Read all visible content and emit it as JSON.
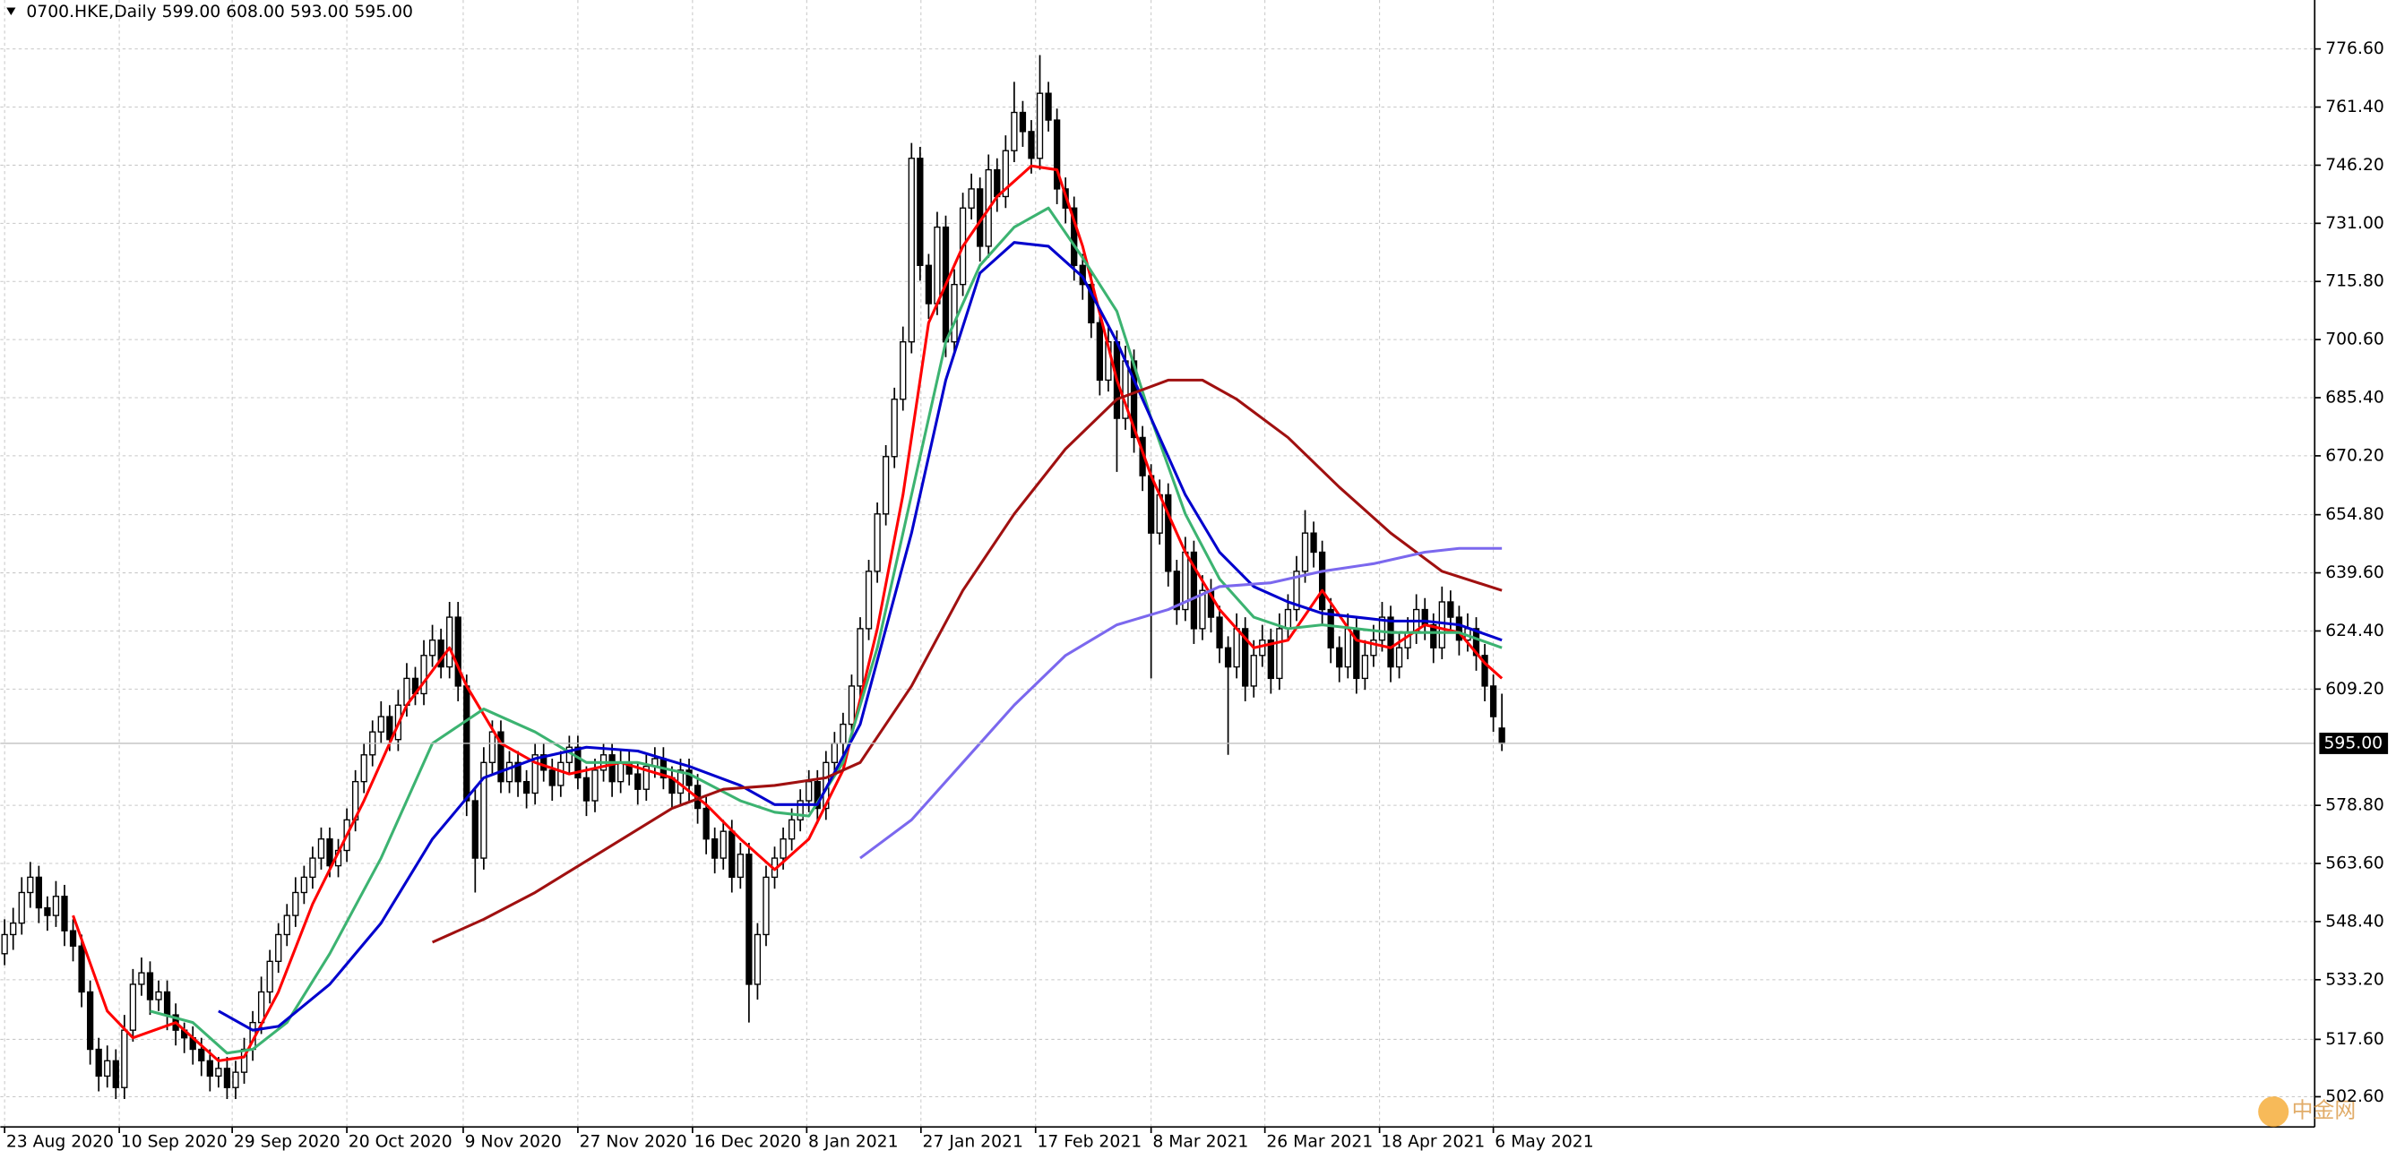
{
  "chart_data": {
    "type": "candlestick",
    "title": "0700.HKE,Daily  599.00 608.00 593.00 595.00",
    "watermark": "中金网",
    "xlim": [
      -0.5,
      270
    ],
    "ylim": [
      494.7,
      789.4
    ],
    "grid": true,
    "up_color": "#ffffff",
    "down_color": "#000000",
    "wick_color": "#000000",
    "last_price": {
      "value": 595,
      "label": "595.00"
    },
    "xticks": [
      {
        "value": 0,
        "label": "23 Aug 2020"
      },
      {
        "value": 13.4,
        "label": "10 Sep 2020"
      },
      {
        "value": 26.6,
        "label": "29 Sep 2020"
      },
      {
        "value": 40,
        "label": "20 Oct 2020"
      },
      {
        "value": 53.6,
        "label": "9 Nov 2020"
      },
      {
        "value": 67,
        "label": "27 Nov 2020"
      },
      {
        "value": 80.4,
        "label": "16 Dec 2020"
      },
      {
        "value": 93.75,
        "label": "8 Jan 2021"
      },
      {
        "value": 107.1,
        "label": "27 Jan 2021"
      },
      {
        "value": 120.5,
        "label": "17 Feb 2021"
      },
      {
        "value": 134,
        "label": "8 Mar 2021"
      },
      {
        "value": 147.3,
        "label": "26 Mar 2021"
      },
      {
        "value": 160.7,
        "label": "18 Apr 2021"
      },
      {
        "value": 174,
        "label": "6 May 2021"
      }
    ],
    "yticks": [
      {
        "value": 776.6,
        "label": "776.60"
      },
      {
        "value": 761.4,
        "label": "761.40"
      },
      {
        "value": 746.2,
        "label": "746.20"
      },
      {
        "value": 731,
        "label": "731.00"
      },
      {
        "value": 715.8,
        "label": "715.80"
      },
      {
        "value": 700.6,
        "label": "700.60"
      },
      {
        "value": 685.4,
        "label": "685.40"
      },
      {
        "value": 670.2,
        "label": "670.20"
      },
      {
        "value": 654.8,
        "label": "654.80"
      },
      {
        "value": 639.6,
        "label": "639.60"
      },
      {
        "value": 624.4,
        "label": "624.40"
      },
      {
        "value": 609.2,
        "label": "609.20"
      },
      {
        "value": 578.8,
        "label": "578.80"
      },
      {
        "value": 563.6,
        "label": "563.60"
      },
      {
        "value": 548.4,
        "label": "548.40"
      },
      {
        "value": 533.2,
        "label": "533.20"
      },
      {
        "value": 517.6,
        "label": "517.60"
      },
      {
        "value": 502.6,
        "label": "502.60"
      }
    ],
    "ohlc": [
      [
        540,
        549,
        537,
        545
      ],
      [
        545,
        552,
        541,
        548
      ],
      [
        548,
        560,
        545,
        556
      ],
      [
        556,
        564,
        552,
        560
      ],
      [
        560,
        563,
        548,
        552
      ],
      [
        552,
        555,
        546,
        550
      ],
      [
        550,
        559,
        547,
        555
      ],
      [
        555,
        558,
        542,
        546
      ],
      [
        546,
        549,
        538,
        542
      ],
      [
        542,
        545,
        526,
        530
      ],
      [
        530,
        533,
        511,
        515
      ],
      [
        515,
        518,
        504,
        508
      ],
      [
        508,
        516,
        505,
        512
      ],
      [
        512,
        515,
        502,
        505
      ],
      [
        505,
        524,
        502,
        520
      ],
      [
        520,
        536,
        517,
        532
      ],
      [
        532,
        539,
        529,
        535
      ],
      [
        535,
        538,
        524,
        528
      ],
      [
        528,
        533,
        525,
        530
      ],
      [
        530,
        533,
        520,
        524
      ],
      [
        524,
        527,
        516,
        520
      ],
      [
        520,
        522,
        514,
        518
      ],
      [
        518,
        521,
        511,
        515
      ],
      [
        515,
        518,
        508,
        512
      ],
      [
        512,
        515,
        504,
        508
      ],
      [
        508,
        513,
        505,
        510
      ],
      [
        510,
        513,
        502,
        505
      ],
      [
        505,
        512,
        502,
        509
      ],
      [
        509,
        518,
        506,
        515
      ],
      [
        515,
        525,
        512,
        522
      ],
      [
        522,
        534,
        519,
        530
      ],
      [
        530,
        541,
        527,
        538
      ],
      [
        538,
        548,
        535,
        545
      ],
      [
        545,
        553,
        542,
        550
      ],
      [
        550,
        560,
        547,
        556
      ],
      [
        556,
        563,
        553,
        560
      ],
      [
        560,
        568,
        557,
        565
      ],
      [
        565,
        573,
        562,
        570
      ],
      [
        570,
        573,
        560,
        563
      ],
      [
        563,
        570,
        560,
        567
      ],
      [
        567,
        578,
        564,
        575
      ],
      [
        575,
        588,
        572,
        585
      ],
      [
        585,
        595,
        582,
        592
      ],
      [
        592,
        601,
        589,
        598
      ],
      [
        598,
        606,
        595,
        602
      ],
      [
        602,
        605,
        593,
        596
      ],
      [
        596,
        609,
        593,
        605
      ],
      [
        605,
        616,
        602,
        612
      ],
      [
        612,
        615,
        605,
        608
      ],
      [
        608,
        622,
        605,
        618
      ],
      [
        618,
        626,
        615,
        622
      ],
      [
        622,
        625,
        612,
        615
      ],
      [
        615,
        632,
        612,
        628
      ],
      [
        628,
        632,
        606,
        610
      ],
      [
        610,
        613,
        576,
        580
      ],
      [
        580,
        583,
        556,
        565
      ],
      [
        565,
        594,
        562,
        590
      ],
      [
        590,
        601,
        587,
        598
      ],
      [
        598,
        601,
        582,
        585
      ],
      [
        585,
        593,
        582,
        590
      ],
      [
        590,
        593,
        581,
        585
      ],
      [
        585,
        588,
        578,
        582
      ],
      [
        582,
        595,
        579,
        592
      ],
      [
        592,
        595,
        585,
        588
      ],
      [
        588,
        591,
        580,
        584
      ],
      [
        584,
        593,
        581,
        590
      ],
      [
        590,
        597,
        587,
        594
      ],
      [
        594,
        597,
        583,
        586
      ],
      [
        586,
        589,
        576,
        580
      ],
      [
        580,
        591,
        577,
        588
      ],
      [
        588,
        595,
        585,
        592
      ],
      [
        592,
        595,
        581,
        585
      ],
      [
        585,
        593,
        582,
        590
      ],
      [
        590,
        593,
        584,
        587
      ],
      [
        587,
        590,
        579,
        583
      ],
      [
        583,
        592,
        580,
        589
      ],
      [
        589,
        594,
        586,
        591
      ],
      [
        591,
        594,
        583,
        586
      ],
      [
        586,
        589,
        578,
        582
      ],
      [
        582,
        591,
        579,
        588
      ],
      [
        588,
        591,
        580,
        584
      ],
      [
        584,
        587,
        574,
        578
      ],
      [
        578,
        581,
        566,
        570
      ],
      [
        570,
        573,
        561,
        565
      ],
      [
        565,
        575,
        562,
        572
      ],
      [
        572,
        575,
        556,
        560
      ],
      [
        560,
        569,
        557,
        566
      ],
      [
        566,
        569,
        522,
        532
      ],
      [
        532,
        548,
        528,
        545
      ],
      [
        545,
        563,
        542,
        560
      ],
      [
        560,
        568,
        557,
        565
      ],
      [
        565,
        573,
        562,
        570
      ],
      [
        570,
        578,
        567,
        575
      ],
      [
        575,
        583,
        572,
        580
      ],
      [
        580,
        588,
        577,
        585
      ],
      [
        585,
        588,
        574,
        578
      ],
      [
        578,
        593,
        575,
        590
      ],
      [
        590,
        598,
        587,
        595
      ],
      [
        595,
        603,
        592,
        600
      ],
      [
        600,
        613,
        597,
        610
      ],
      [
        610,
        628,
        607,
        625
      ],
      [
        625,
        643,
        622,
        640
      ],
      [
        640,
        658,
        637,
        655
      ],
      [
        655,
        673,
        652,
        670
      ],
      [
        670,
        688,
        667,
        685
      ],
      [
        685,
        704,
        682,
        700
      ],
      [
        700,
        752,
        697,
        748
      ],
      [
        748,
        751,
        716,
        720
      ],
      [
        720,
        723,
        706,
        710
      ],
      [
        710,
        734,
        707,
        730
      ],
      [
        730,
        733,
        696,
        700
      ],
      [
        700,
        719,
        697,
        715
      ],
      [
        715,
        739,
        712,
        735
      ],
      [
        735,
        744,
        732,
        740
      ],
      [
        740,
        743,
        721,
        725
      ],
      [
        725,
        749,
        722,
        745
      ],
      [
        745,
        748,
        734,
        738
      ],
      [
        738,
        754,
        735,
        750
      ],
      [
        750,
        768,
        747,
        760
      ],
      [
        760,
        763,
        751,
        755
      ],
      [
        755,
        758,
        744,
        748
      ],
      [
        748,
        775,
        745,
        765
      ],
      [
        765,
        768,
        755,
        758
      ],
      [
        758,
        761,
        736,
        740
      ],
      [
        740,
        743,
        731,
        735
      ],
      [
        735,
        738,
        716,
        720
      ],
      [
        720,
        723,
        711,
        715
      ],
      [
        715,
        718,
        701,
        705
      ],
      [
        705,
        708,
        686,
        690
      ],
      [
        690,
        704,
        687,
        700
      ],
      [
        700,
        703,
        666,
        680
      ],
      [
        680,
        699,
        677,
        695
      ],
      [
        695,
        698,
        671,
        675
      ],
      [
        675,
        678,
        661,
        665
      ],
      [
        665,
        668,
        612,
        650
      ],
      [
        650,
        664,
        647,
        660
      ],
      [
        660,
        663,
        636,
        640
      ],
      [
        640,
        643,
        626,
        630
      ],
      [
        630,
        649,
        627,
        645
      ],
      [
        645,
        648,
        621,
        625
      ],
      [
        625,
        639,
        622,
        635
      ],
      [
        635,
        638,
        624,
        628
      ],
      [
        628,
        631,
        616,
        620
      ],
      [
        620,
        623,
        592,
        615
      ],
      [
        615,
        629,
        612,
        625
      ],
      [
        625,
        628,
        606,
        610
      ],
      [
        610,
        622,
        607,
        618
      ],
      [
        618,
        626,
        615,
        622
      ],
      [
        622,
        625,
        608,
        612
      ],
      [
        612,
        629,
        609,
        625
      ],
      [
        625,
        634,
        622,
        630
      ],
      [
        630,
        644,
        627,
        640
      ],
      [
        640,
        656,
        637,
        650
      ],
      [
        650,
        653,
        641,
        645
      ],
      [
        645,
        648,
        626,
        630
      ],
      [
        630,
        633,
        616,
        620
      ],
      [
        620,
        623,
        611,
        615
      ],
      [
        615,
        629,
        612,
        625
      ],
      [
        625,
        628,
        608,
        612
      ],
      [
        612,
        622,
        609,
        618
      ],
      [
        618,
        626,
        615,
        622
      ],
      [
        622,
        632,
        619,
        628
      ],
      [
        628,
        631,
        611,
        615
      ],
      [
        615,
        624,
        612,
        620
      ],
      [
        620,
        628,
        617,
        624
      ],
      [
        624,
        634,
        621,
        630
      ],
      [
        630,
        633,
        622,
        626
      ],
      [
        626,
        629,
        616,
        620
      ],
      [
        620,
        636,
        617,
        632
      ],
      [
        632,
        635,
        624,
        628
      ],
      [
        628,
        631,
        618,
        622
      ],
      [
        622,
        629,
        619,
        625
      ],
      [
        625,
        628,
        614,
        618
      ],
      [
        618,
        621,
        606,
        610
      ],
      [
        610,
        613,
        598,
        602
      ],
      [
        599,
        608,
        593,
        595
      ]
    ],
    "series": [
      {
        "color": "#ff0000",
        "x": [
          8,
          12,
          15,
          20,
          25,
          28,
          32,
          36,
          42,
          47,
          52,
          54,
          58,
          62,
          66,
          72,
          78,
          82,
          86,
          90,
          94,
          98,
          102,
          105,
          108,
          112,
          116,
          120,
          123,
          126,
          130,
          134,
          138,
          142,
          146,
          150,
          154,
          158,
          162,
          166,
          170,
          173,
          175
        ],
        "values": [
          550,
          525,
          518,
          522,
          512,
          513,
          530,
          553,
          580,
          605,
          620,
          610,
          595,
          590,
          587,
          590,
          586,
          579,
          570,
          562,
          570,
          588,
          625,
          660,
          705,
          725,
          738,
          746,
          745,
          725,
          690,
          665,
          645,
          630,
          620,
          622,
          635,
          622,
          620,
          626,
          624,
          616,
          612
        ]
      },
      {
        "color": "#3cb371",
        "x": [
          17,
          22,
          26,
          29,
          33,
          38,
          44,
          50,
          56,
          62,
          68,
          74,
          80,
          86,
          90,
          94,
          98,
          102,
          106,
          110,
          114,
          118,
          122,
          126,
          130,
          134,
          138,
          142,
          146,
          150,
          154,
          158,
          162,
          166,
          170,
          175
        ],
        "values": [
          525,
          522,
          514,
          515,
          522,
          540,
          565,
          595,
          604,
          598,
          590,
          590,
          587,
          580,
          577,
          576,
          590,
          620,
          660,
          700,
          720,
          730,
          735,
          722,
          708,
          680,
          655,
          638,
          628,
          625,
          626,
          625,
          624,
          624,
          624,
          620
        ]
      },
      {
        "color": "#0000cd",
        "x": [
          25,
          29,
          32,
          38,
          44,
          50,
          56,
          62,
          68,
          74,
          80,
          86,
          90,
          95,
          100,
          106,
          110,
          114,
          118,
          122,
          126,
          130,
          134,
          138,
          142,
          146,
          150,
          154,
          158,
          162,
          166,
          170,
          175
        ],
        "values": [
          525,
          520,
          521,
          532,
          548,
          570,
          586,
          591,
          594,
          593,
          589,
          584,
          579,
          579,
          600,
          650,
          690,
          718,
          726,
          725,
          717,
          700,
          680,
          660,
          645,
          636,
          632,
          629,
          628,
          627,
          627,
          626,
          622
        ]
      },
      {
        "color": "#a01010",
        "x": [
          50,
          56,
          62,
          70,
          78,
          84,
          90,
          96,
          100,
          106,
          112,
          118,
          124,
          130,
          136,
          140,
          144,
          150,
          156,
          162,
          168,
          175
        ],
        "values": [
          543,
          549,
          556,
          567,
          578,
          583,
          584,
          586,
          590,
          610,
          635,
          655,
          672,
          685,
          690,
          690,
          685,
          675,
          662,
          650,
          640,
          635
        ]
      },
      {
        "color": "#7b68ee",
        "x": [
          100,
          106,
          112,
          118,
          124,
          130,
          136,
          142,
          148,
          154,
          160,
          166,
          170,
          175
        ],
        "values": [
          565,
          575,
          590,
          605,
          618,
          626,
          630,
          636,
          637,
          640,
          642,
          645,
          646,
          646
        ]
      }
    ]
  }
}
